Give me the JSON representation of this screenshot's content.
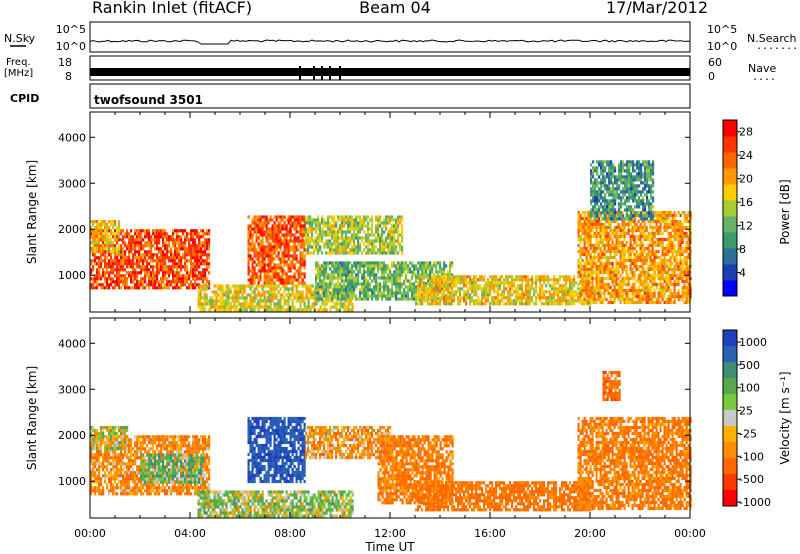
{
  "header": {
    "station": "Rankin Inlet (fitACF)",
    "beam": "Beam 04",
    "date": "17/Mar/2012"
  },
  "top_panels": {
    "nsky_label": "N.Sky",
    "nsearch_label": "N.Search",
    "nsearch_dots": ".......",
    "count_ticks": [
      "10^5",
      "10^0"
    ],
    "freq_label_top": "Freq.",
    "freq_label_unit": "[MHz]",
    "freq_ticks": [
      "18",
      "8"
    ],
    "nave_label": "Nave",
    "nave_dots": "....",
    "nave_ticks": [
      "60",
      "0"
    ],
    "cpid_label": "CPID",
    "cpid_value": "twofsound 3501"
  },
  "colors": {
    "power_scale": [
      "#0000ff",
      "#1a3fb0",
      "#2f6e9a",
      "#3a9a6a",
      "#66b266",
      "#a8cc33",
      "#ffcc00",
      "#ff9900",
      "#ff6600",
      "#ff3300",
      "#ff0000"
    ],
    "velocity_scale": [
      "#1f3fbf",
      "#2a62b4",
      "#3e8e73",
      "#5aa84c",
      "#7ac943",
      "#c8c8c8",
      "#ffb000",
      "#ff8c00",
      "#ff6a00",
      "#ff3a00",
      "#ff0000"
    ]
  },
  "chart_data": [
    {
      "type": "heatmap",
      "panel": "power",
      "ylabel": "Slant Range [km]",
      "yticks": [
        1000,
        2000,
        3000,
        4000
      ],
      "ylim": [
        200,
        4550
      ],
      "xlim": [
        0,
        24
      ],
      "colorbar_label": "Power [dB]",
      "colorbar_ticks": [
        4,
        8,
        12,
        16,
        20,
        24,
        28
      ],
      "colorbar_range": [
        0,
        30
      ],
      "regions": [
        {
          "t0": 0.0,
          "t1": 4.8,
          "r0": 700,
          "r1": 2000,
          "v": 26
        },
        {
          "t0": 0.0,
          "t1": 1.2,
          "r0": 1500,
          "r1": 2200,
          "v": 18
        },
        {
          "t0": 4.3,
          "t1": 10.5,
          "r0": 250,
          "r1": 800,
          "v": 17
        },
        {
          "t0": 6.3,
          "t1": 8.6,
          "r0": 800,
          "r1": 2300,
          "v": 25
        },
        {
          "t0": 8.6,
          "t1": 12.5,
          "r0": 1500,
          "r1": 2300,
          "v": 15
        },
        {
          "t0": 9.0,
          "t1": 14.5,
          "r0": 500,
          "r1": 1300,
          "v": 12
        },
        {
          "t0": 13.0,
          "t1": 20.0,
          "r0": 350,
          "r1": 1000,
          "v": 18
        },
        {
          "t0": 19.5,
          "t1": 24.0,
          "r0": 400,
          "r1": 2400,
          "v": 21
        },
        {
          "t0": 20.0,
          "t1": 22.5,
          "r0": 2200,
          "r1": 3500,
          "v": 9
        }
      ]
    },
    {
      "type": "heatmap",
      "panel": "velocity",
      "ylabel": "Slant Range [km]",
      "xlabel": "Time UT",
      "yticks": [
        1000,
        2000,
        3000,
        4000
      ],
      "ylim": [
        200,
        4550
      ],
      "xlim": [
        0,
        24
      ],
      "xticks": [
        "00:00",
        "04:00",
        "08:00",
        "12:00",
        "16:00",
        "20:00",
        "00:00"
      ],
      "colorbar_label": "Velocity [m s⁻¹]",
      "colorbar_ticks": [
        "1000",
        "500",
        "100",
        "25",
        "-25",
        "-100",
        "-500",
        "-1000"
      ],
      "regions": [
        {
          "t0": 0.0,
          "t1": 4.8,
          "r0": 700,
          "r1": 2000,
          "v": -150
        },
        {
          "t0": 0.0,
          "t1": 1.5,
          "r0": 1700,
          "r1": 2200,
          "v": 0
        },
        {
          "t0": 2.0,
          "t1": 4.5,
          "r0": 1000,
          "r1": 1600,
          "v": 120
        },
        {
          "t0": 4.3,
          "t1": 10.5,
          "r0": 250,
          "r1": 800,
          "v": 60
        },
        {
          "t0": 6.3,
          "t1": 8.6,
          "r0": 1000,
          "r1": 2400,
          "v": 700
        },
        {
          "t0": 8.6,
          "t1": 12.0,
          "r0": 1500,
          "r1": 2200,
          "v": -120
        },
        {
          "t0": 11.5,
          "t1": 14.5,
          "r0": 500,
          "r1": 2000,
          "v": -200
        },
        {
          "t0": 13.0,
          "t1": 20.0,
          "r0": 350,
          "r1": 1000,
          "v": -250
        },
        {
          "t0": 19.5,
          "t1": 24.0,
          "r0": 400,
          "r1": 2400,
          "v": -200
        },
        {
          "t0": 20.5,
          "t1": 21.2,
          "r0": 2800,
          "r1": 3400,
          "v": -300
        }
      ]
    }
  ]
}
